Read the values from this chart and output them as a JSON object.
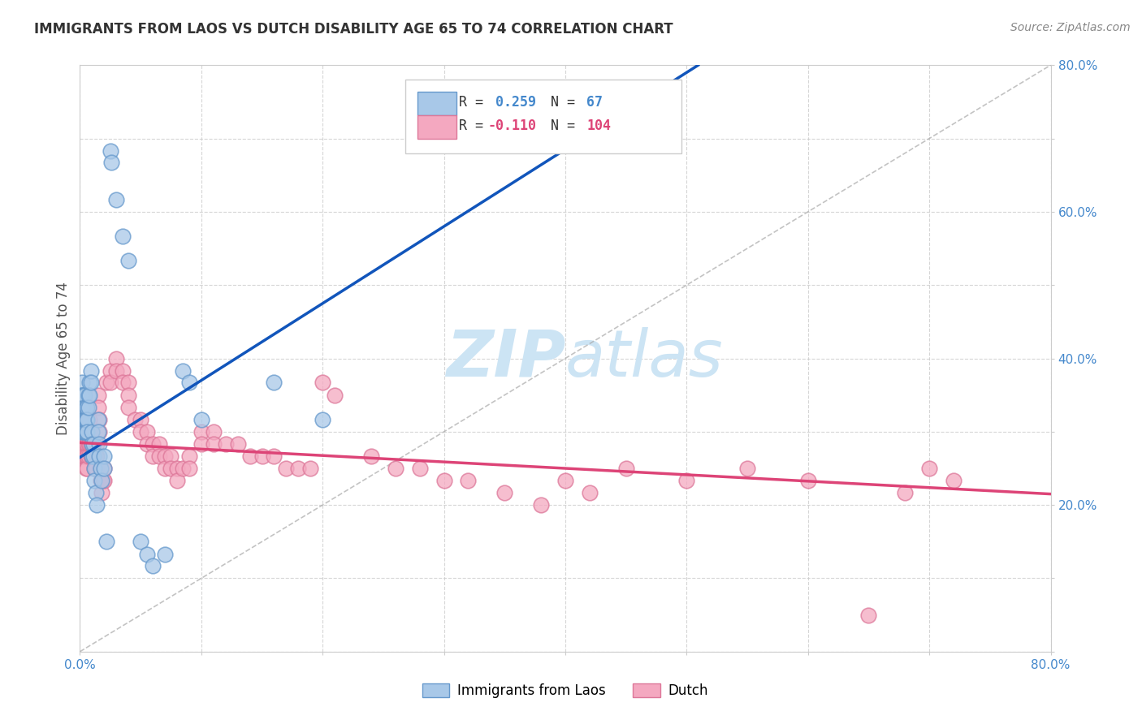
{
  "title": "IMMIGRANTS FROM LAOS VS DUTCH DISABILITY AGE 65 TO 74 CORRELATION CHART",
  "source": "Source: ZipAtlas.com",
  "ylabel": "Disability Age 65 to 74",
  "xmin": 0.0,
  "xmax": 0.8,
  "ymin": 0.0,
  "ymax": 0.8,
  "color_blue": "#a8c8e8",
  "color_pink": "#f4a8c0",
  "color_blue_edge": "#6699cc",
  "color_pink_edge": "#dd7799",
  "color_blue_line": "#1155bb",
  "color_pink_line": "#dd4477",
  "color_axis_text": "#4488cc",
  "background_color": "#ffffff",
  "grid_color": "#cccccc",
  "watermark_color": "#cce4f4",
  "blue_line_x0": 0.0,
  "blue_line_y0": 0.265,
  "blue_line_x1": 0.2,
  "blue_line_y1": 0.475,
  "pink_line_x0": 0.0,
  "pink_line_y0": 0.285,
  "pink_line_x1": 0.8,
  "pink_line_y1": 0.215,
  "blue_dots": [
    [
      0.001,
      0.35
    ],
    [
      0.001,
      0.333
    ],
    [
      0.001,
      0.317
    ],
    [
      0.001,
      0.3
    ],
    [
      0.001,
      0.317
    ],
    [
      0.001,
      0.35
    ],
    [
      0.002,
      0.367
    ],
    [
      0.002,
      0.35
    ],
    [
      0.002,
      0.333
    ],
    [
      0.002,
      0.317
    ],
    [
      0.002,
      0.35
    ],
    [
      0.002,
      0.333
    ],
    [
      0.003,
      0.35
    ],
    [
      0.003,
      0.333
    ],
    [
      0.003,
      0.317
    ],
    [
      0.003,
      0.3
    ],
    [
      0.003,
      0.333
    ],
    [
      0.003,
      0.317
    ],
    [
      0.004,
      0.35
    ],
    [
      0.004,
      0.333
    ],
    [
      0.004,
      0.317
    ],
    [
      0.004,
      0.3
    ],
    [
      0.004,
      0.317
    ],
    [
      0.005,
      0.333
    ],
    [
      0.005,
      0.317
    ],
    [
      0.005,
      0.3
    ],
    [
      0.005,
      0.317
    ],
    [
      0.006,
      0.333
    ],
    [
      0.006,
      0.317
    ],
    [
      0.006,
      0.3
    ],
    [
      0.007,
      0.35
    ],
    [
      0.007,
      0.333
    ],
    [
      0.008,
      0.367
    ],
    [
      0.008,
      0.35
    ],
    [
      0.009,
      0.383
    ],
    [
      0.009,
      0.367
    ],
    [
      0.01,
      0.3
    ],
    [
      0.01,
      0.283
    ],
    [
      0.01,
      0.267
    ],
    [
      0.011,
      0.283
    ],
    [
      0.011,
      0.267
    ],
    [
      0.012,
      0.25
    ],
    [
      0.012,
      0.233
    ],
    [
      0.013,
      0.217
    ],
    [
      0.014,
      0.2
    ],
    [
      0.015,
      0.317
    ],
    [
      0.015,
      0.3
    ],
    [
      0.016,
      0.283
    ],
    [
      0.016,
      0.267
    ],
    [
      0.017,
      0.25
    ],
    [
      0.018,
      0.233
    ],
    [
      0.02,
      0.267
    ],
    [
      0.02,
      0.25
    ],
    [
      0.022,
      0.15
    ],
    [
      0.025,
      0.683
    ],
    [
      0.026,
      0.667
    ],
    [
      0.03,
      0.617
    ],
    [
      0.035,
      0.567
    ],
    [
      0.04,
      0.533
    ],
    [
      0.05,
      0.15
    ],
    [
      0.055,
      0.133
    ],
    [
      0.06,
      0.117
    ],
    [
      0.07,
      0.133
    ],
    [
      0.085,
      0.383
    ],
    [
      0.09,
      0.367
    ],
    [
      0.1,
      0.317
    ],
    [
      0.16,
      0.367
    ],
    [
      0.2,
      0.317
    ]
  ],
  "pink_dots": [
    [
      0.001,
      0.317
    ],
    [
      0.001,
      0.3
    ],
    [
      0.001,
      0.283
    ],
    [
      0.002,
      0.317
    ],
    [
      0.002,
      0.3
    ],
    [
      0.002,
      0.283
    ],
    [
      0.002,
      0.267
    ],
    [
      0.003,
      0.3
    ],
    [
      0.003,
      0.283
    ],
    [
      0.003,
      0.267
    ],
    [
      0.004,
      0.317
    ],
    [
      0.004,
      0.3
    ],
    [
      0.004,
      0.283
    ],
    [
      0.004,
      0.267
    ],
    [
      0.005,
      0.3
    ],
    [
      0.005,
      0.283
    ],
    [
      0.005,
      0.267
    ],
    [
      0.005,
      0.25
    ],
    [
      0.006,
      0.283
    ],
    [
      0.006,
      0.267
    ],
    [
      0.006,
      0.25
    ],
    [
      0.007,
      0.3
    ],
    [
      0.007,
      0.283
    ],
    [
      0.007,
      0.267
    ],
    [
      0.008,
      0.317
    ],
    [
      0.008,
      0.3
    ],
    [
      0.008,
      0.283
    ],
    [
      0.009,
      0.283
    ],
    [
      0.009,
      0.267
    ],
    [
      0.01,
      0.3
    ],
    [
      0.01,
      0.283
    ],
    [
      0.01,
      0.267
    ],
    [
      0.011,
      0.283
    ],
    [
      0.011,
      0.267
    ],
    [
      0.012,
      0.267
    ],
    [
      0.012,
      0.25
    ],
    [
      0.013,
      0.267
    ],
    [
      0.013,
      0.25
    ],
    [
      0.014,
      0.283
    ],
    [
      0.014,
      0.267
    ],
    [
      0.015,
      0.35
    ],
    [
      0.015,
      0.333
    ],
    [
      0.016,
      0.317
    ],
    [
      0.016,
      0.3
    ],
    [
      0.017,
      0.25
    ],
    [
      0.017,
      0.233
    ],
    [
      0.018,
      0.233
    ],
    [
      0.018,
      0.217
    ],
    [
      0.019,
      0.233
    ],
    [
      0.02,
      0.25
    ],
    [
      0.02,
      0.233
    ],
    [
      0.022,
      0.367
    ],
    [
      0.025,
      0.383
    ],
    [
      0.025,
      0.367
    ],
    [
      0.03,
      0.4
    ],
    [
      0.03,
      0.383
    ],
    [
      0.035,
      0.383
    ],
    [
      0.035,
      0.367
    ],
    [
      0.04,
      0.367
    ],
    [
      0.04,
      0.35
    ],
    [
      0.04,
      0.333
    ],
    [
      0.045,
      0.317
    ],
    [
      0.05,
      0.317
    ],
    [
      0.05,
      0.3
    ],
    [
      0.055,
      0.3
    ],
    [
      0.055,
      0.283
    ],
    [
      0.06,
      0.283
    ],
    [
      0.06,
      0.267
    ],
    [
      0.065,
      0.283
    ],
    [
      0.065,
      0.267
    ],
    [
      0.07,
      0.267
    ],
    [
      0.07,
      0.25
    ],
    [
      0.075,
      0.267
    ],
    [
      0.075,
      0.25
    ],
    [
      0.08,
      0.25
    ],
    [
      0.08,
      0.233
    ],
    [
      0.085,
      0.25
    ],
    [
      0.09,
      0.267
    ],
    [
      0.09,
      0.25
    ],
    [
      0.1,
      0.3
    ],
    [
      0.1,
      0.283
    ],
    [
      0.11,
      0.3
    ],
    [
      0.11,
      0.283
    ],
    [
      0.12,
      0.283
    ],
    [
      0.13,
      0.283
    ],
    [
      0.14,
      0.267
    ],
    [
      0.15,
      0.267
    ],
    [
      0.16,
      0.267
    ],
    [
      0.17,
      0.25
    ],
    [
      0.18,
      0.25
    ],
    [
      0.19,
      0.25
    ],
    [
      0.2,
      0.367
    ],
    [
      0.21,
      0.35
    ],
    [
      0.24,
      0.267
    ],
    [
      0.26,
      0.25
    ],
    [
      0.28,
      0.25
    ],
    [
      0.3,
      0.233
    ],
    [
      0.32,
      0.233
    ],
    [
      0.35,
      0.217
    ],
    [
      0.38,
      0.2
    ],
    [
      0.4,
      0.233
    ],
    [
      0.42,
      0.217
    ],
    [
      0.45,
      0.25
    ],
    [
      0.5,
      0.233
    ],
    [
      0.55,
      0.25
    ],
    [
      0.6,
      0.233
    ],
    [
      0.65,
      0.05
    ],
    [
      0.68,
      0.217
    ],
    [
      0.7,
      0.25
    ],
    [
      0.72,
      0.233
    ]
  ]
}
